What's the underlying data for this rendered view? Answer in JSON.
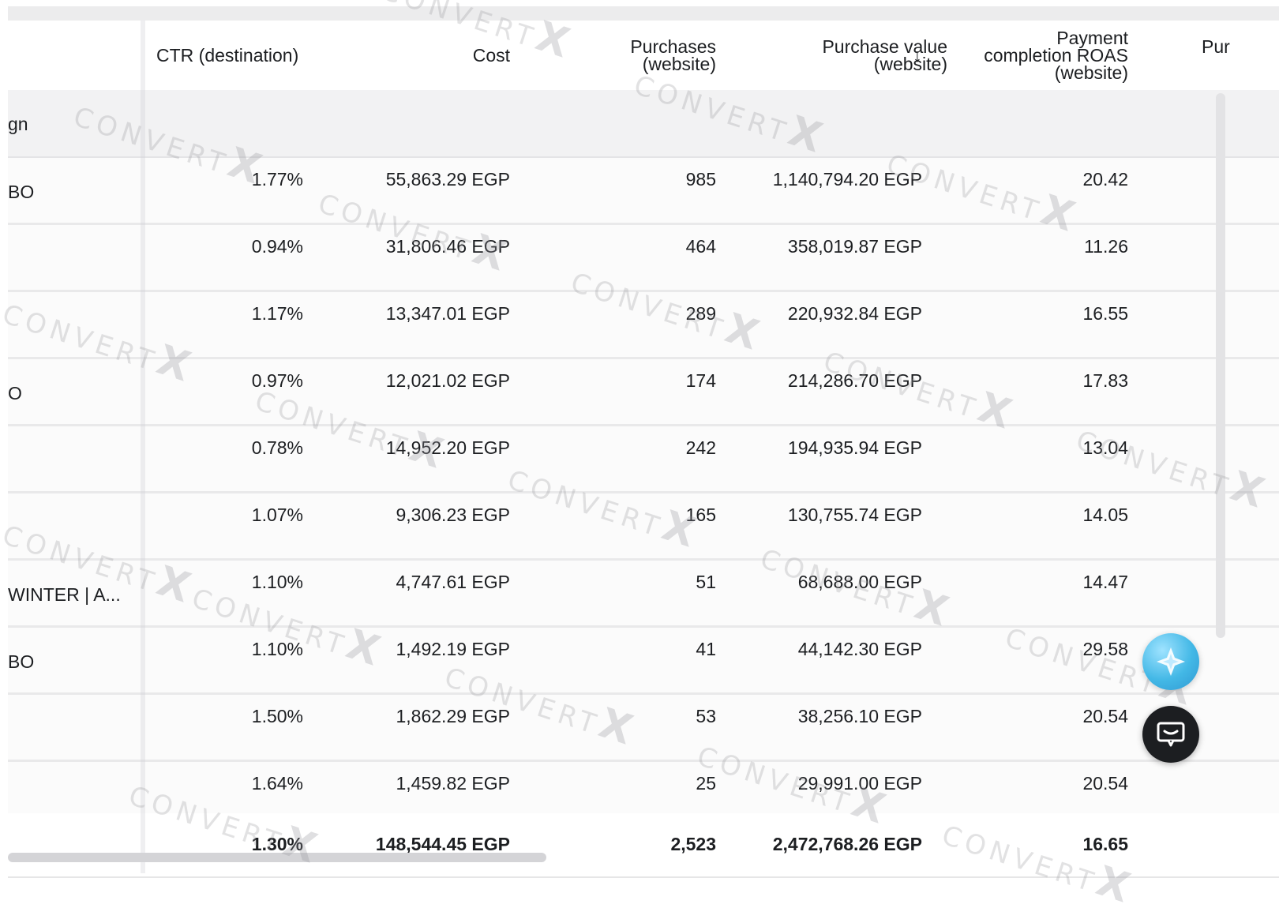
{
  "header": {
    "col_name_partial": "",
    "ctr": "CTR (destination)",
    "cost": "Cost",
    "purchases_line1": "Purchases",
    "purchases_line2": "(website)",
    "value_line1": "Purchase value",
    "value_line2": "(website)",
    "sort_arrow": "↓",
    "roas_line1": "Payment",
    "roas_line2": "completion ROAS",
    "roas_line3": "(website)",
    "next_col_partial": "Pur"
  },
  "group": {
    "label": "gn"
  },
  "rows": [
    {
      "name": "BO",
      "ctr": "1.77%",
      "cost": "55,863.29 EGP",
      "purchases": "985",
      "value": "1,140,794.20 EGP",
      "roas": "20.42"
    },
    {
      "name": "",
      "ctr": "0.94%",
      "cost": "31,806.46 EGP",
      "purchases": "464",
      "value": "358,019.87 EGP",
      "roas": "11.26"
    },
    {
      "name": "",
      "ctr": "1.17%",
      "cost": "13,347.01 EGP",
      "purchases": "289",
      "value": "220,932.84 EGP",
      "roas": "16.55"
    },
    {
      "name": "O",
      "ctr": "0.97%",
      "cost": "12,021.02 EGP",
      "purchases": "174",
      "value": "214,286.70 EGP",
      "roas": "17.83"
    },
    {
      "name": "",
      "ctr": "0.78%",
      "cost": "14,952.20 EGP",
      "purchases": "242",
      "value": "194,935.94 EGP",
      "roas": "13.04"
    },
    {
      "name": "",
      "ctr": "1.07%",
      "cost": "9,306.23 EGP",
      "purchases": "165",
      "value": "130,755.74 EGP",
      "roas": "14.05"
    },
    {
      "name": "WINTER | A...",
      "ctr": "1.10%",
      "cost": "4,747.61 EGP",
      "purchases": "51",
      "value": "68,688.00 EGP",
      "roas": "14.47"
    },
    {
      "name": "BO",
      "ctr": "1.10%",
      "cost": "1,492.19 EGP",
      "purchases": "41",
      "value": "44,142.30 EGP",
      "roas": "29.58"
    },
    {
      "name": "",
      "ctr": "1.50%",
      "cost": "1,862.29 EGP",
      "purchases": "53",
      "value": "38,256.10 EGP",
      "roas": "20.54"
    },
    {
      "name": "",
      "ctr": "1.64%",
      "cost": "1,459.82 EGP",
      "purchases": "25",
      "value": "29,991.00 EGP",
      "roas": "20.54"
    }
  ],
  "totals": {
    "ctr": "1.30%",
    "cost": "148,544.45 EGP",
    "purchases": "2,523",
    "value": "2,472,768.26 EGP",
    "roas": "16.65"
  },
  "watermark": {
    "text": "CONVERT",
    "mark": "X"
  },
  "icons": {
    "ai_button": "sparkle-icon",
    "chat_button": "chat-icon"
  },
  "colors": {
    "ai_button": "#43b8e6",
    "chat_button": "#1c1e21",
    "row_bg": "#fbfbfb",
    "group_bg": "#f2f2f3"
  }
}
